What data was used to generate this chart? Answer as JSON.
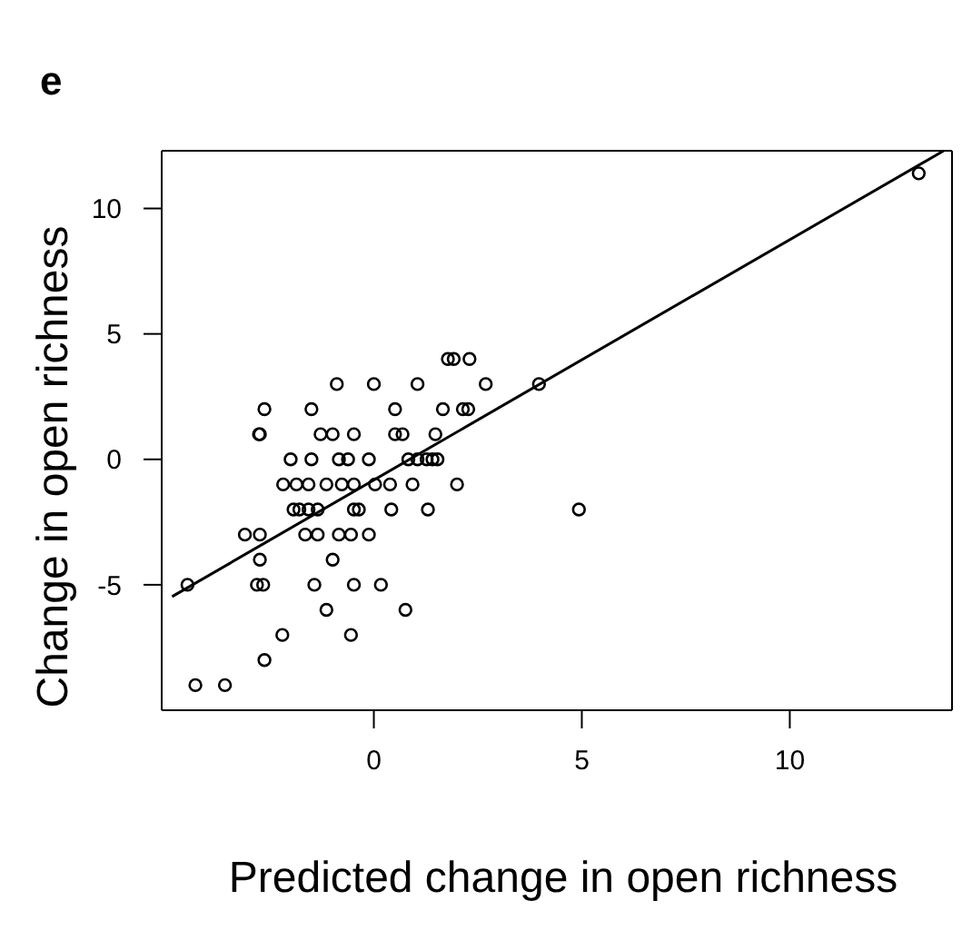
{
  "chart_data": {
    "type": "scatter",
    "title": "e",
    "xlabel": "Predicted change in open richness",
    "ylabel": "Change in open richness",
    "xlim": [
      -5.1,
      13.9
    ],
    "ylim": [
      -10,
      12.3
    ],
    "xticks": [
      0,
      5,
      10
    ],
    "yticks": [
      -5,
      0,
      5,
      10
    ],
    "marker": "circle",
    "series": [
      {
        "color": "#000000",
        "x": [
          13.1,
          1.78,
          1.92,
          2.3,
          -0.89,
          0,
          1.05,
          2.69,
          3.97,
          -2.63,
          -1.5,
          0.51,
          1.66,
          2.14,
          2.27,
          -2.76,
          -2.74,
          -1.28,
          -0.99,
          -0.48,
          0.51,
          0.69,
          1.48,
          -2.0,
          -1.5,
          -0.84,
          -0.62,
          -0.12,
          0.83,
          1.05,
          1.27,
          1.41,
          1.53,
          -2.18,
          -1.86,
          -1.57,
          -1.14,
          -0.77,
          -0.48,
          0.03,
          0.39,
          0.93,
          2.0,
          -1.93,
          -1.79,
          -1.57,
          -1.35,
          -0.48,
          -0.36,
          0.42,
          1.3,
          4.93,
          -3.1,
          -2.74,
          -1.65,
          -1.35,
          -0.84,
          -0.55,
          -0.12,
          -2.74,
          -0.99,
          -4.48,
          -2.81,
          -2.66,
          -1.43,
          -0.48,
          0.17,
          -1.14,
          0.76,
          -2.2,
          -0.55,
          -2.63,
          -4.29,
          -3.58
        ],
        "values": [
          11.4,
          4,
          4,
          4,
          3,
          3,
          3,
          3,
          3,
          2,
          2,
          2,
          2,
          2,
          2,
          1,
          1,
          1,
          1,
          1,
          1,
          1,
          1,
          0,
          0,
          0,
          0,
          0,
          0,
          0,
          0,
          0,
          0,
          -1,
          -1,
          -1,
          -1,
          -1,
          -1,
          -1,
          -1,
          -1,
          -1,
          -2,
          -2,
          -2,
          -2,
          -2,
          -2,
          -2,
          -2,
          -2,
          -3,
          -3,
          -3,
          -3,
          -3,
          -3,
          -3,
          -4,
          -4,
          -5,
          -5,
          -5,
          -5,
          -5,
          -5,
          -6,
          -6,
          -7,
          -7,
          -8,
          -9,
          -9
        ]
      },
      {
        "type": "line",
        "color": "#000000",
        "marker": "none",
        "line_style": "solid",
        "x": [
          -4.85,
          13.7
        ],
        "values": [
          -5.47,
          12.3
        ]
      }
    ]
  }
}
